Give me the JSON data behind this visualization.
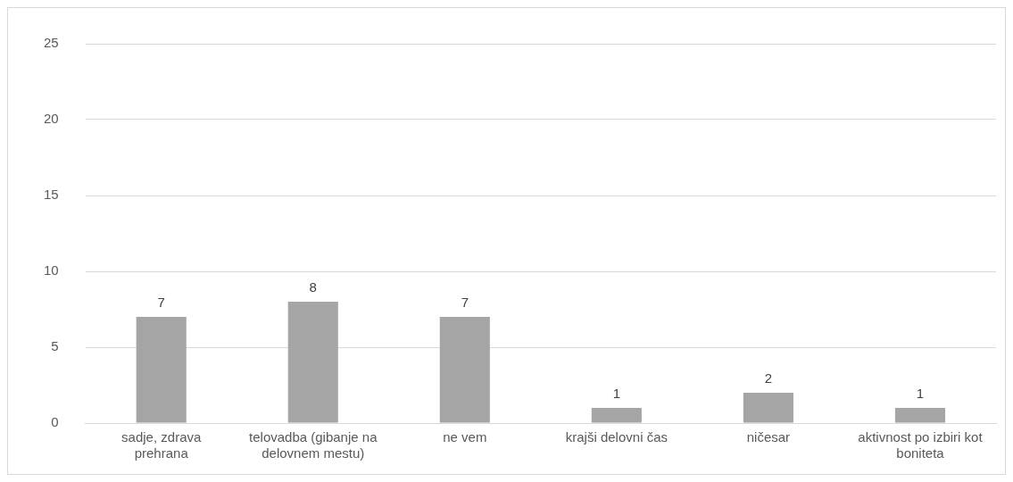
{
  "chart_data": {
    "type": "bar",
    "categories": [
      "sadje, zdrava prehrana",
      "telovadba (gibanje na delovnem mestu)",
      "ne vem",
      "krajši delovni čas",
      "ničesar",
      "aktivnost po izbiri kot boniteta"
    ],
    "values": [
      7,
      8,
      7,
      1,
      2,
      1
    ],
    "color": "#a5a5a5",
    "ylim": [
      0,
      25
    ],
    "yticks": [
      0,
      5,
      10,
      15,
      20,
      25
    ],
    "grid": "y",
    "data_labels": true
  }
}
